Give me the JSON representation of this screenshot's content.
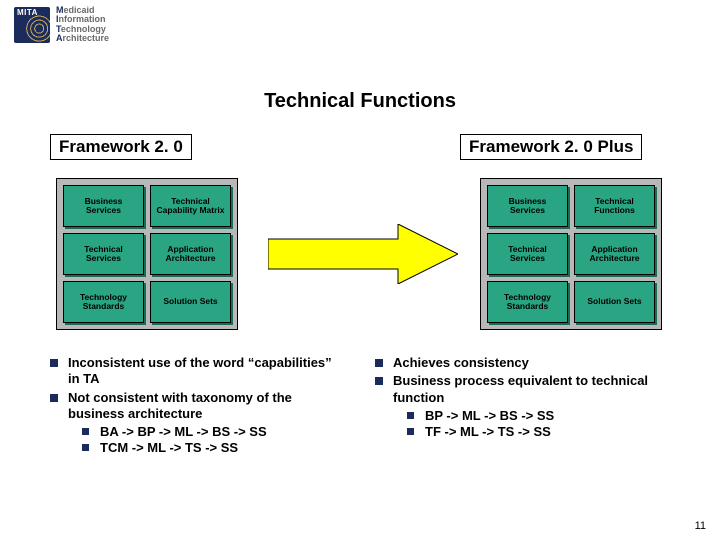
{
  "logo": {
    "acronym": "MITA",
    "lines": [
      "Medicaid",
      "Information",
      "Technology",
      "Architecture"
    ]
  },
  "title": "Technical Functions",
  "frameworks": {
    "left": {
      "label": "Framework 2. 0",
      "cells": [
        "Business Services",
        "Technical Capability Matrix",
        "Technical Services",
        "Application Architecture",
        "Technology Standards",
        "Solution Sets"
      ]
    },
    "right": {
      "label": "Framework 2. 0 Plus",
      "cells": [
        "Business Services",
        "Technical Functions",
        "Technical Services",
        "Application Architecture",
        "Technology Standards",
        "Solution Sets"
      ]
    }
  },
  "arrow": {
    "fill": "#ffff00",
    "stroke": "#000000"
  },
  "panel": {
    "bg": "#b8b8b8",
    "cell_bg": "#2aa583",
    "cell_shadow": "#1a6b55"
  },
  "bullets": {
    "left": [
      {
        "text": "Inconsistent use of the word “capabilities” in TA",
        "sub": []
      },
      {
        "text": "Not consistent with taxonomy of the business architecture",
        "sub": [
          "BA -> BP -> ML -> BS -> SS",
          "TCM -> ML -> TS -> SS"
        ]
      }
    ],
    "right": [
      {
        "text": "Achieves consistency",
        "sub": []
      },
      {
        "text": "Business process equivalent to technical function",
        "sub": [
          "BP -> ML -> BS -> SS",
          "TF -> ML -> TS -> SS"
        ]
      }
    ]
  },
  "page_number": "11"
}
